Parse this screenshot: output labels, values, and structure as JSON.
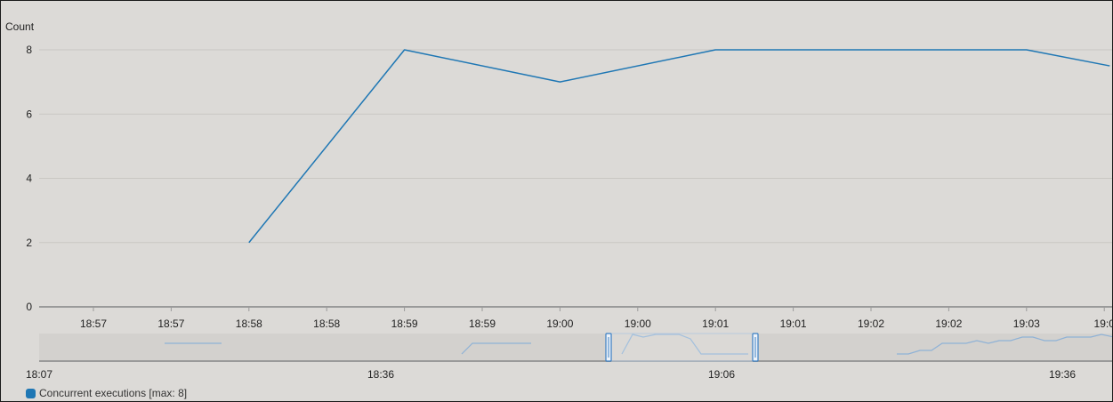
{
  "chart_data": {
    "type": "line",
    "ylabel": "Count",
    "ylim": [
      0,
      8
    ],
    "yticks": [
      "0",
      "2",
      "4",
      "6",
      "8"
    ],
    "xticks": [
      "18:57",
      "18:57",
      "18:58",
      "18:58",
      "18:59",
      "18:59",
      "19:00",
      "19:00",
      "19:01",
      "19:01",
      "19:02",
      "19:02",
      "19:03",
      "19:0"
    ],
    "series": [
      {
        "name": "Concurrent executions [max: 8]",
        "color": "#1f77b4",
        "points": [
          [
            2,
            2
          ],
          [
            4,
            8
          ],
          [
            6,
            7
          ],
          [
            8,
            8
          ],
          [
            10,
            8
          ],
          [
            12,
            8
          ],
          [
            13.07,
            7.5
          ]
        ]
      }
    ],
    "grid": true,
    "navigator": {
      "labels": [
        "18:07",
        "18:36",
        "19:06",
        "19:36"
      ],
      "selection_color": "#3a7fc4"
    },
    "legend": {
      "position": "bottom-left",
      "entries": [
        "Concurrent executions [max: 8]"
      ]
    }
  }
}
